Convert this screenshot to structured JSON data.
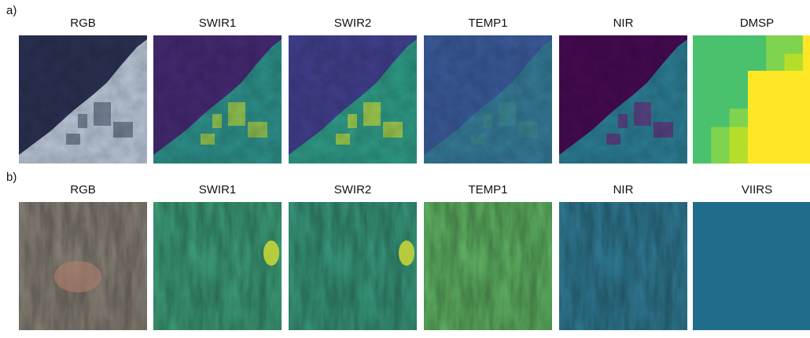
{
  "rows": [
    {
      "label": "a)",
      "panels": [
        "RGB",
        "SWIR1",
        "SWIR2",
        "TEMP1",
        "NIR",
        "DMSP"
      ]
    },
    {
      "label": "b)",
      "panels": [
        "RGB",
        "SWIR1",
        "SWIR2",
        "TEMP1",
        "NIR",
        "VIIRS"
      ]
    }
  ]
}
